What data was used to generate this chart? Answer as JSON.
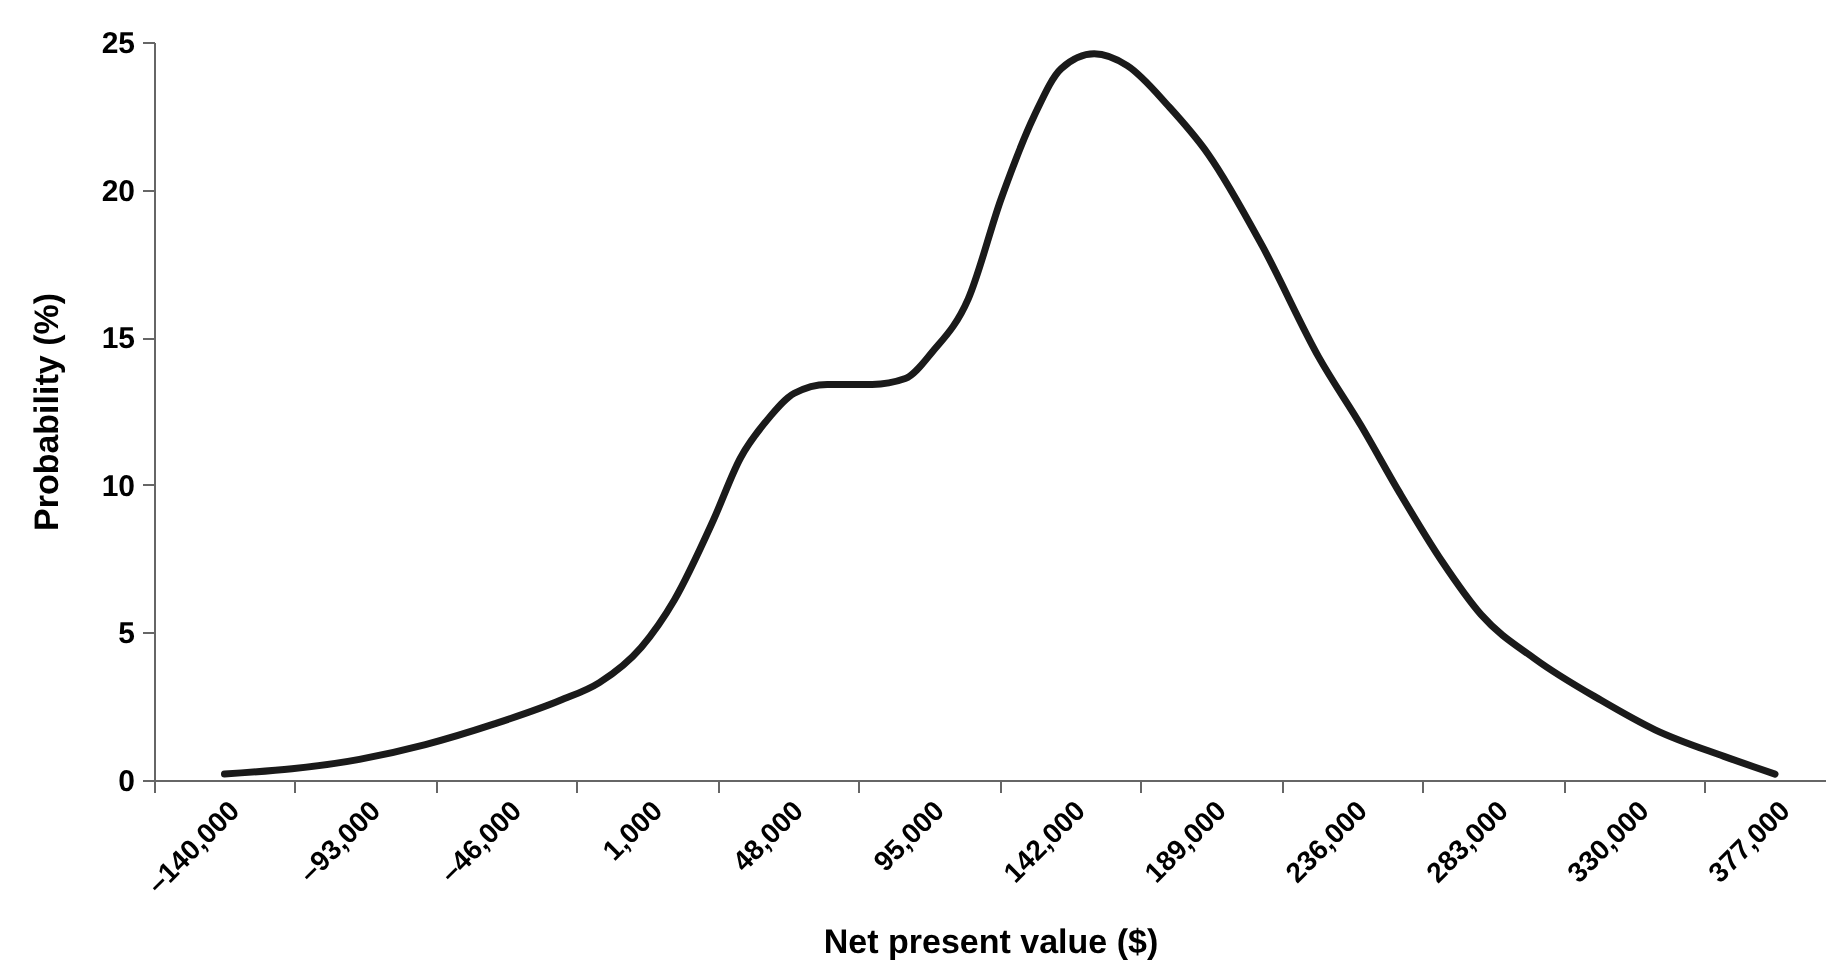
{
  "chart_data": {
    "type": "line",
    "xlabel": "Net present value ($)",
    "ylabel": "Probability (%)",
    "x": [
      -140000,
      -95000,
      -73000,
      -50000,
      -28000,
      -15000,
      -1000,
      10000,
      23000,
      32000,
      41000,
      50000,
      61000,
      76000,
      87000,
      96000,
      108000,
      119000,
      130000,
      139000,
      150000,
      161000,
      175000,
      188000,
      206000,
      225000,
      239000,
      252000,
      266000,
      279000,
      297000,
      319000,
      337000,
      360000,
      377000
    ],
    "series": [
      {
        "color": "#1a1a1a",
        "values": [
          0.2,
          0.7,
          1.2,
          1.9,
          2.7,
          3.3,
          4.5,
          6.1,
          8.8,
          10.9,
          12.2,
          13.1,
          13.4,
          13.4,
          13.6,
          14.5,
          16.3,
          19.7,
          22.5,
          24.1,
          24.6,
          24.2,
          22.8,
          21.2,
          18.1,
          14.3,
          12.0,
          9.7,
          7.4,
          5.6,
          4.1,
          2.7,
          1.7,
          0.8,
          0.2
        ]
      }
    ],
    "xlim": [
      -163500,
      394000
    ],
    "ylim": [
      0,
      25
    ],
    "xticks": [
      {
        "value": -163500,
        "label": null
      },
      {
        "value": -140000,
        "label": "–140,000"
      },
      {
        "value": -116500,
        "label": null
      },
      {
        "value": -93000,
        "label": "–93,000"
      },
      {
        "value": -69500,
        "label": null
      },
      {
        "value": -46000,
        "label": "–46,000"
      },
      {
        "value": -22500,
        "label": null
      },
      {
        "value": 1000,
        "label": "1,000"
      },
      {
        "value": 24500,
        "label": null
      },
      {
        "value": 48000,
        "label": "48,000"
      },
      {
        "value": 71500,
        "label": null
      },
      {
        "value": 95000,
        "label": "95,000"
      },
      {
        "value": 118500,
        "label": null
      },
      {
        "value": 142000,
        "label": "142,000"
      },
      {
        "value": 165500,
        "label": null
      },
      {
        "value": 189000,
        "label": "189,000"
      },
      {
        "value": 212500,
        "label": null
      },
      {
        "value": 236000,
        "label": "236,000"
      },
      {
        "value": 259500,
        "label": null
      },
      {
        "value": 283000,
        "label": "283,000"
      },
      {
        "value": 306500,
        "label": null
      },
      {
        "value": 330000,
        "label": "330,000"
      },
      {
        "value": 353500,
        "label": null
      },
      {
        "value": 377000,
        "label": "377,000"
      }
    ],
    "yticks": [
      0,
      5,
      10,
      15,
      20,
      25
    ]
  }
}
